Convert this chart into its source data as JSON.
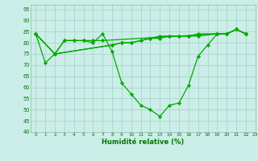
{
  "xlabel": "Humidité relative (%)",
  "bg_color": "#cceee8",
  "grid_color": "#aad4cc",
  "line_color": "#00aa00",
  "xlim": [
    -0.5,
    23
  ],
  "ylim": [
    40,
    97
  ],
  "yticks": [
    40,
    45,
    50,
    55,
    60,
    65,
    70,
    75,
    80,
    85,
    90,
    95
  ],
  "xticks": [
    0,
    1,
    2,
    3,
    4,
    5,
    6,
    7,
    8,
    9,
    10,
    11,
    12,
    13,
    14,
    15,
    16,
    17,
    18,
    19,
    20,
    21,
    22,
    23
  ],
  "line1_x": [
    0,
    1,
    2,
    3,
    4,
    5,
    6,
    7,
    8,
    9,
    10,
    11,
    12,
    13,
    14,
    15,
    16,
    17,
    18,
    19,
    20,
    21,
    22
  ],
  "line1_y": [
    84,
    71,
    75,
    81,
    81,
    81,
    80,
    84,
    76,
    62,
    57,
    52,
    50,
    47,
    52,
    53,
    61,
    74,
    79,
    84,
    84,
    86,
    84
  ],
  "line2_x": [
    0,
    2,
    3,
    4,
    5,
    6,
    7,
    19,
    20,
    21,
    22
  ],
  "line2_y": [
    84,
    75,
    81,
    81,
    81,
    81,
    81,
    84,
    84,
    86,
    84
  ],
  "line3_x": [
    0,
    2,
    8,
    9,
    10,
    11,
    12,
    13,
    14,
    15,
    16,
    17,
    19,
    20,
    21,
    22
  ],
  "line3_y": [
    84,
    75,
    79,
    80,
    80,
    81,
    82,
    82,
    83,
    83,
    83,
    83,
    84,
    84,
    86,
    84
  ],
  "line4_x": [
    0,
    2,
    8,
    9,
    10,
    11,
    12,
    13,
    14,
    15,
    16,
    17,
    19,
    20,
    21,
    22
  ],
  "line4_y": [
    84,
    75,
    79,
    80,
    80,
    81,
    82,
    83,
    83,
    83,
    83,
    84,
    84,
    84,
    86,
    84
  ]
}
